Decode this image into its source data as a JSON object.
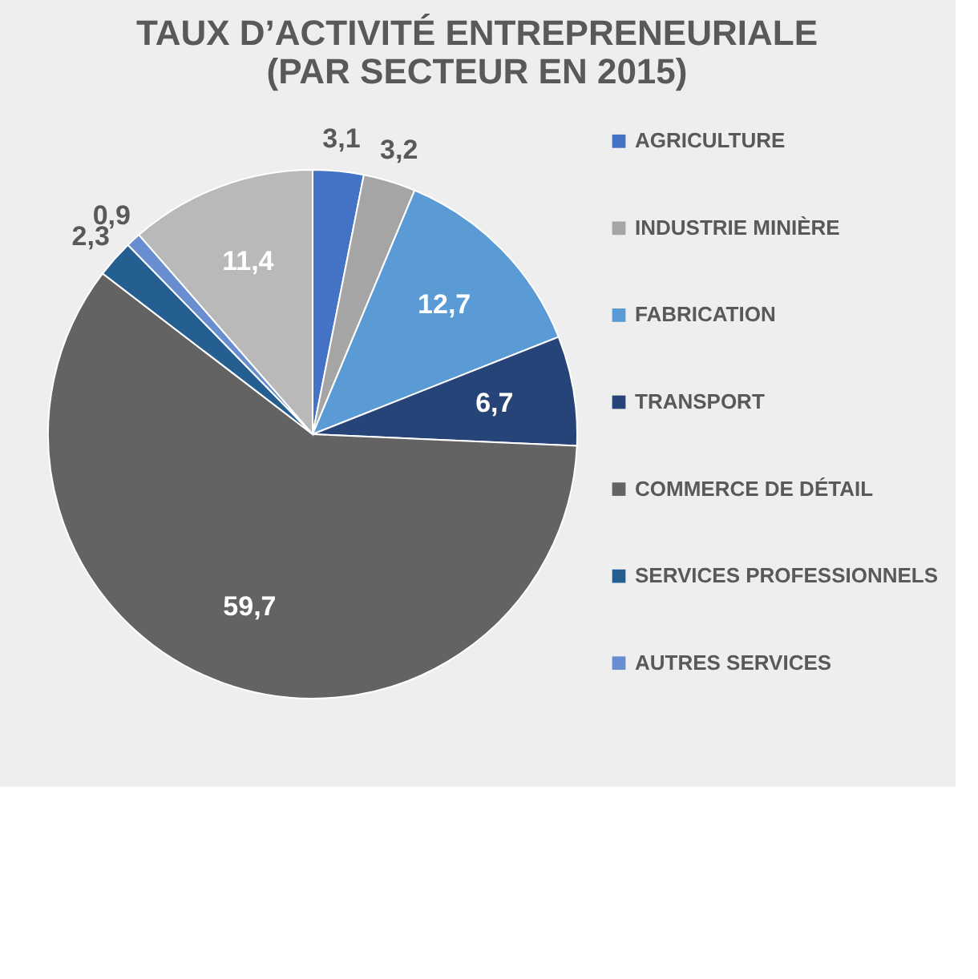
{
  "chart_data": {
    "type": "pie",
    "title": [
      "TAUX D’ACTIVITÉ ENTREPRENEURIALE",
      "(PAR SECTEUR EN 2015)"
    ],
    "categories": [
      "AGRICULTURE",
      "INDUSTRIE MINIÈRE",
      "FABRICATION",
      "TRANSPORT",
      "COMMERCE DE DÉTAIL",
      "SERVICES PROFESSIONNELS",
      "AUTRES SERVICES",
      null
    ],
    "values": [
      3.1,
      3.2,
      12.7,
      6.7,
      59.7,
      2.3,
      0.9,
      11.4
    ],
    "colors": [
      "#4472c4",
      "#a5a5a5",
      "#5b9bd5",
      "#264478",
      "#636363",
      "#255e91",
      "#698ed0",
      "#b9b9b9"
    ],
    "value_labels": [
      "3,1",
      "3,2",
      "12,7",
      "6,7",
      "59,7",
      "2,3",
      "0,9",
      "11,4"
    ],
    "legend": "right"
  }
}
